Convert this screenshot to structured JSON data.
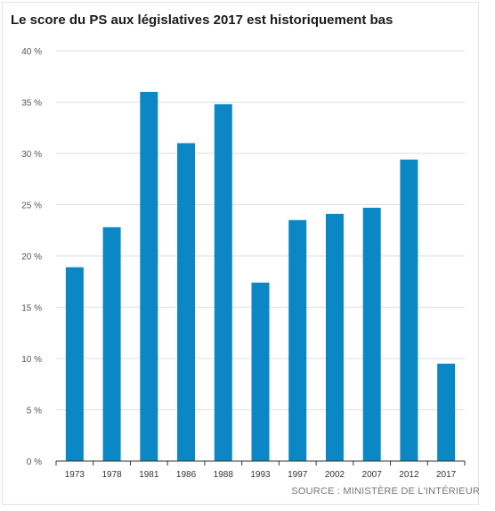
{
  "title": "Le score du PS aux législatives 2017 est historiquement bas",
  "source": "SOURCE : MINISTÈRE DE L'INTÉRIEUR",
  "colors": {
    "bar": "#0b87c6"
  },
  "chart_data": {
    "type": "bar",
    "title": "Le score du PS aux législatives 2017 est historiquement bas",
    "xlabel": "",
    "ylabel": "",
    "categories": [
      "1973",
      "1978",
      "1981",
      "1986",
      "1988",
      "1993",
      "1997",
      "2002",
      "2007",
      "2012",
      "2017"
    ],
    "values": [
      18.9,
      22.8,
      36.0,
      31.0,
      34.8,
      17.4,
      23.5,
      24.1,
      24.7,
      29.4,
      9.5
    ],
    "ylim": [
      0,
      40
    ],
    "yticks": [
      0,
      5,
      10,
      15,
      20,
      25,
      30,
      35,
      40
    ],
    "ytick_labels": [
      "0 %",
      "5 %",
      "10 %",
      "15 %",
      "20 %",
      "25 %",
      "30 %",
      "35 %",
      "40 %"
    ],
    "grid": true,
    "legend": "none"
  }
}
